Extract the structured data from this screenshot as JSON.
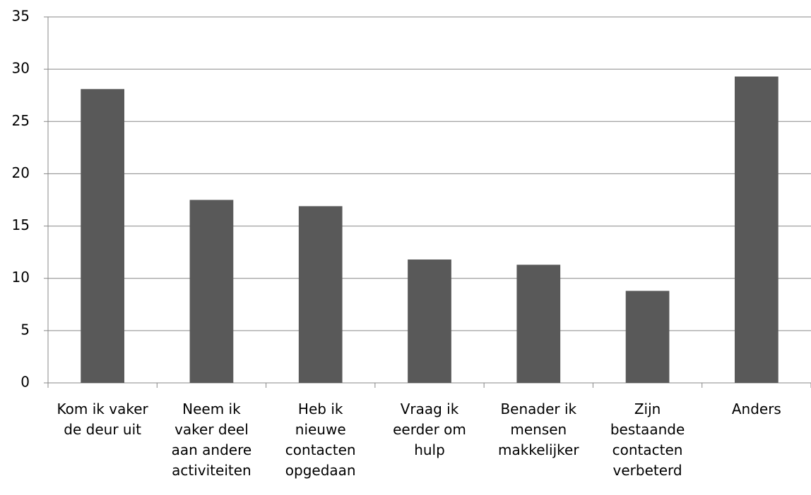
{
  "chart_data": {
    "type": "bar",
    "categories": [
      "Kom ik vaker\nde deur uit",
      "Neem ik\nvaker deel\naan andere\nactiviteiten",
      "Heb ik\nnieuwe\ncontacten\nopgedaan",
      "Vraag ik\neerder om\nhulp",
      "Benader ik\nmensen\nmakkelijker",
      "Zijn\nbestaande\ncontacten\nverbeterd",
      "Anders"
    ],
    "values": [
      28.1,
      17.5,
      16.9,
      11.8,
      11.3,
      8.8,
      29.3
    ],
    "color": "#595959",
    "ylim": [
      0,
      35
    ],
    "yticks": [
      0,
      5,
      10,
      15,
      20,
      25,
      30,
      35
    ],
    "grid": true
  }
}
